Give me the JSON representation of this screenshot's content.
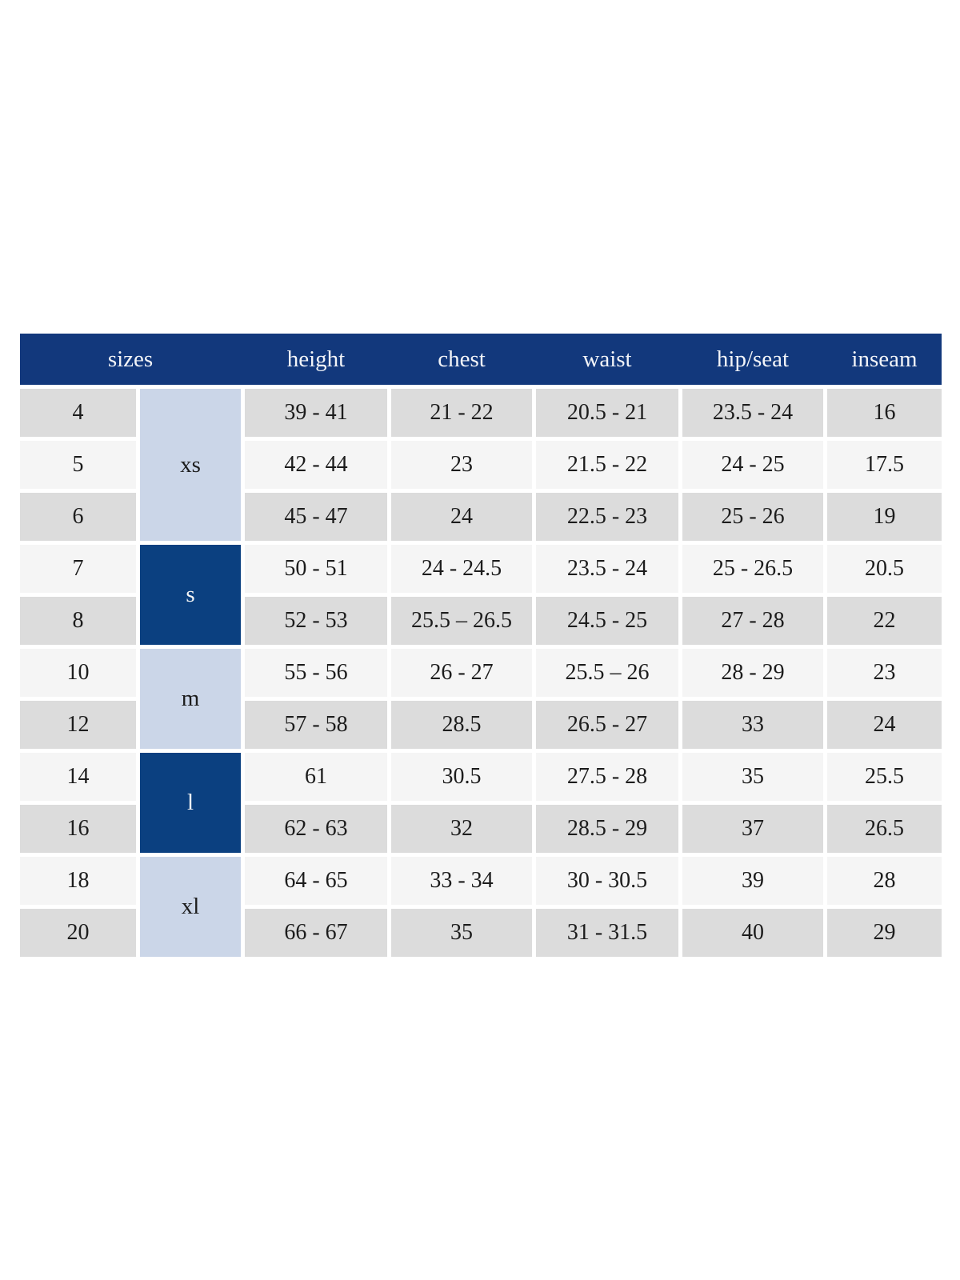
{
  "colors": {
    "header_bg": "#12387c",
    "group_dark_bg": "#0b4080",
    "group_light_bg": "#cbd6e8",
    "row_gray": "#dcdcdc",
    "row_light": "#f5f5f5",
    "header_text": "#f2f4f8",
    "cell_text": "#1c1c1c"
  },
  "chart_data": {
    "type": "table",
    "headers": [
      "sizes",
      "height",
      "chest",
      "waist",
      "hip/seat",
      "inseam"
    ],
    "size_groups": [
      {
        "label": "xs",
        "sizes": [
          "4",
          "5",
          "6"
        ],
        "highlight": "light-blue"
      },
      {
        "label": "s",
        "sizes": [
          "7",
          "8"
        ],
        "highlight": "dark-blue"
      },
      {
        "label": "m",
        "sizes": [
          "10",
          "12"
        ],
        "highlight": "light-blue"
      },
      {
        "label": "l",
        "sizes": [
          "14",
          "16"
        ],
        "highlight": "dark-blue"
      },
      {
        "label": "xl",
        "sizes": [
          "18",
          "20"
        ],
        "highlight": "light-blue"
      }
    ],
    "rows": [
      {
        "size": "4",
        "height": "39 - 41",
        "chest": "21 - 22",
        "waist": "20.5 - 21",
        "hip_seat": "23.5 - 24",
        "inseam": "16"
      },
      {
        "size": "5",
        "height": "42 - 44",
        "chest": "23",
        "waist": "21.5 - 22",
        "hip_seat": "24 - 25",
        "inseam": "17.5"
      },
      {
        "size": "6",
        "height": "45 - 47",
        "chest": "24",
        "waist": "22.5 - 23",
        "hip_seat": "25 - 26",
        "inseam": "19"
      },
      {
        "size": "7",
        "height": "50 - 51",
        "chest": "24 - 24.5",
        "waist": "23.5 - 24",
        "hip_seat": "25 - 26.5",
        "inseam": "20.5"
      },
      {
        "size": "8",
        "height": "52 - 53",
        "chest": "25.5 – 26.5",
        "waist": "24.5 - 25",
        "hip_seat": "27 - 28",
        "inseam": "22"
      },
      {
        "size": "10",
        "height": "55 - 56",
        "chest": "26 - 27",
        "waist": "25.5 – 26",
        "hip_seat": "28 - 29",
        "inseam": "23"
      },
      {
        "size": "12",
        "height": "57 - 58",
        "chest": "28.5",
        "waist": "26.5 - 27",
        "hip_seat": "33",
        "inseam": "24"
      },
      {
        "size": "14",
        "height": "61",
        "chest": "30.5",
        "waist": "27.5 - 28",
        "hip_seat": "35",
        "inseam": "25.5"
      },
      {
        "size": "16",
        "height": "62 - 63",
        "chest": "32",
        "waist": "28.5 - 29",
        "hip_seat": "37",
        "inseam": "26.5"
      },
      {
        "size": "18",
        "height": "64 - 65",
        "chest": "33 - 34",
        "waist": "30 - 30.5",
        "hip_seat": "39",
        "inseam": "28"
      },
      {
        "size": "20",
        "height": "66 - 67",
        "chest": "35",
        "waist": "31 - 31.5",
        "hip_seat": "40",
        "inseam": "29"
      }
    ]
  }
}
